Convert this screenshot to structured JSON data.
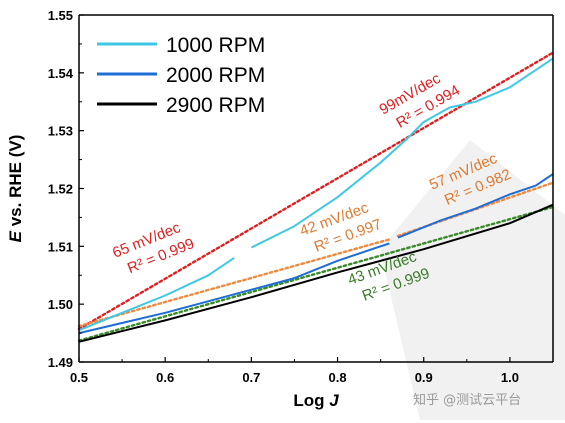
{
  "chart_data": {
    "type": "line",
    "xlabel": {
      "prefix": "Log ",
      "var": "J"
    },
    "ylabel": {
      "var": "E",
      "rest": " vs. RHE (V)"
    },
    "xlim": [
      0.5,
      1.05
    ],
    "ylim": [
      1.49,
      1.55
    ],
    "x_ticks": [
      0.5,
      0.6,
      0.7,
      0.8,
      0.9,
      1.0
    ],
    "x_tick_labels": [
      "0.5",
      "0.6",
      "0.7",
      "0.8",
      "0.9",
      "1.0"
    ],
    "y_ticks": [
      1.49,
      1.5,
      1.51,
      1.52,
      1.53,
      1.54,
      1.55
    ],
    "y_tick_labels": [
      "1.49",
      "1.50",
      "1.51",
      "1.52",
      "1.53",
      "1.54",
      "1.55"
    ],
    "grid": false,
    "legend_position": "top-left",
    "series": [
      {
        "name": "1000 RPM",
        "color": "#3fc8e6",
        "segments": [
          [
            [
              0.5,
              1.4955
            ],
            [
              0.55,
              1.4985
            ],
            [
              0.6,
              1.5015
            ],
            [
              0.65,
              1.505
            ],
            [
              0.68,
              1.508
            ]
          ],
          [
            [
              0.7,
              1.5098
            ],
            [
              0.75,
              1.5135
            ],
            [
              0.8,
              1.5185
            ],
            [
              0.85,
              1.5245
            ],
            [
              0.88,
              1.5285
            ],
            [
              0.9,
              1.5315
            ],
            [
              0.93,
              1.534
            ],
            [
              0.96,
              1.535
            ],
            [
              1.0,
              1.5375
            ],
            [
              1.05,
              1.5425
            ]
          ]
        ]
      },
      {
        "name": "2000 RPM",
        "color": "#1f6dd6",
        "segments": [
          [
            [
              0.5,
              1.495
            ],
            [
              0.6,
              1.4985
            ],
            [
              0.7,
              1.5025
            ],
            [
              0.75,
              1.5045
            ],
            [
              0.8,
              1.5075
            ],
            [
              0.86,
              1.5105
            ]
          ],
          [
            [
              0.87,
              1.5115
            ],
            [
              0.92,
              1.5145
            ],
            [
              0.96,
              1.5165
            ],
            [
              1.0,
              1.519
            ],
            [
              1.03,
              1.5205
            ],
            [
              1.05,
              1.5225
            ]
          ]
        ]
      },
      {
        "name": "2900 RPM",
        "color": "#000000",
        "segments": [
          [
            [
              0.5,
              1.4935
            ],
            [
              0.6,
              1.4972
            ],
            [
              0.7,
              1.5012
            ],
            [
              0.8,
              1.5055
            ],
            [
              0.9,
              1.5095
            ],
            [
              1.0,
              1.514
            ],
            [
              1.05,
              1.5172
            ]
          ]
        ]
      }
    ],
    "fits": [
      {
        "color": "#e02020",
        "points": [
          [
            0.5,
            1.4957
          ],
          [
            1.05,
            1.5435
          ]
        ]
      },
      {
        "color": "#f08a40",
        "points": [
          [
            0.5,
            1.4962
          ],
          [
            0.86,
            1.5112
          ]
        ]
      },
      {
        "color": "#f08a40",
        "points": [
          [
            0.87,
            1.5118
          ],
          [
            1.05,
            1.521
          ]
        ]
      },
      {
        "color": "#3a8a2a",
        "points": [
          [
            0.5,
            1.4937
          ],
          [
            1.05,
            1.5168
          ]
        ]
      }
    ],
    "annotations": [
      {
        "lines": [
          "65 mV/dec",
          "R² = 0.999"
        ],
        "color": "#e02020"
      },
      {
        "lines": [
          "99mV/dec",
          "R² = 0.994"
        ],
        "color": "#e02020"
      },
      {
        "lines": [
          "42 mV/dec",
          "R² = 0.997"
        ],
        "color": "#e07a30"
      },
      {
        "lines": [
          "57 mV/dec",
          "R² = 0.982"
        ],
        "color": "#e07a30"
      },
      {
        "lines": [
          "43 mV/dec",
          "R² = 0.999"
        ],
        "color": "#3a7a2a"
      }
    ]
  },
  "watermark": "知乎 @测试云平台",
  "colors": {
    "axis": "#000000",
    "background": "#ffffff"
  }
}
